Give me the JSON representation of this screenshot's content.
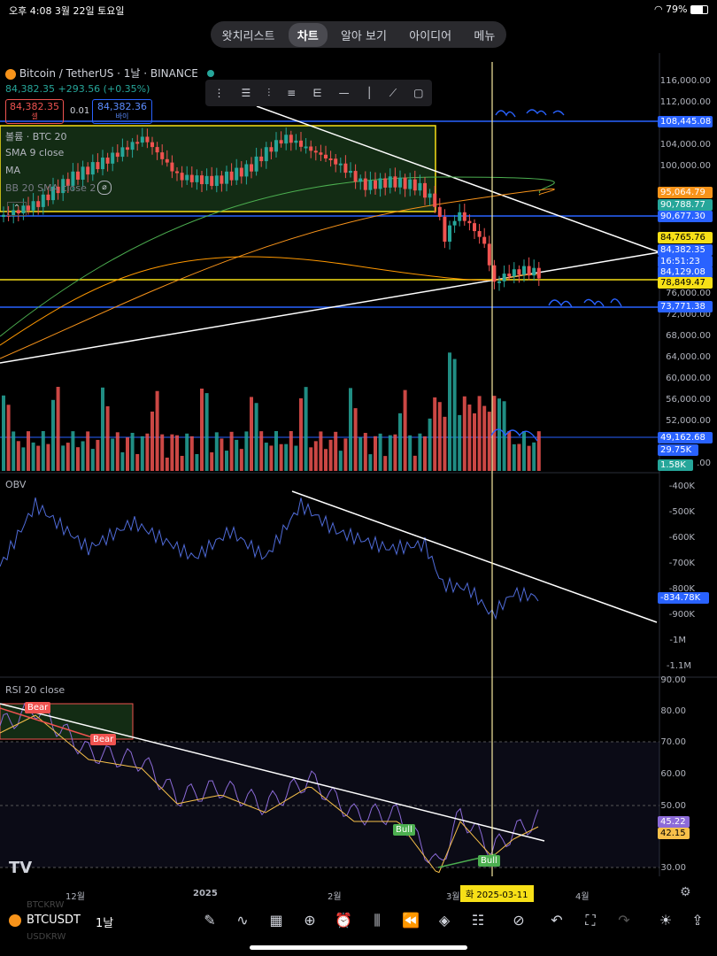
{
  "status": {
    "time_date": "오후 4:08   3월 22일 토요일",
    "battery": "79%"
  },
  "tabs": [
    {
      "label": "왓치리스트",
      "active": false
    },
    {
      "label": "차트",
      "active": true
    },
    {
      "label": "알아 보기",
      "active": false
    },
    {
      "label": "아이디어",
      "active": false
    },
    {
      "label": "메뉴",
      "active": false
    }
  ],
  "legend": {
    "symbol": "Bitcoin / TetherUS · 1날 · BINANCE",
    "price_change": "84,382.35 +293.56 (+0.35%)",
    "sell_price": "84,382.35",
    "sell_label": "셀",
    "spread": "0.01",
    "buy_price": "84,382.36",
    "buy_label": "바이",
    "indicators": [
      "볼륨 · BTC 20",
      "SMA 9 close",
      "MA",
      "BB 20 SMA close 2"
    ]
  },
  "price_axis": [
    "116,000.00",
    "112,000.00",
    "104,000.00",
    "100,000.00",
    "76,000.00",
    "72,000.00",
    "68,000.00",
    "64,000.00",
    "60,000.00",
    "56,000.00",
    "52,000.00",
    ".00"
  ],
  "price_tags": [
    {
      "text": "108,445.08",
      "color": "#2962ff"
    },
    {
      "text": "95,064.79",
      "color": "#f7931a"
    },
    {
      "text": "90,788.77",
      "color": "#26a69a"
    },
    {
      "text": "90,677.30",
      "color": "#2962ff"
    },
    {
      "text": "84,765.76",
      "color": "#f7e017"
    },
    {
      "text": "84,382.35",
      "color": "#2962ff"
    },
    {
      "text": "16:51:23",
      "color": "#2962ff"
    },
    {
      "text": "84,129.08",
      "color": "#2962ff"
    },
    {
      "text": "78,849.47",
      "color": "#f7e017"
    },
    {
      "text": "73,771.38",
      "color": "#2962ff"
    },
    {
      "text": "49,162.68",
      "color": "#2962ff"
    },
    {
      "text": "29.75K",
      "color": "#2962ff"
    },
    {
      "text": "1.58K",
      "color": "#26a69a"
    }
  ],
  "obv": {
    "label": "OBV",
    "axis": [
      "-400K",
      "-500K",
      "-600K",
      "-700K",
      "-800K",
      "-900K",
      "-1M",
      "-1.1M"
    ],
    "current": "-834.78K"
  },
  "rsi": {
    "label": "RSI 20 close",
    "axis": [
      "90.00",
      "80.00",
      "70.00",
      "60.00",
      "50.00",
      "30.00"
    ],
    "tag1": "45.22",
    "tag2": "42.15",
    "signals": [
      "Bear",
      "Bear",
      "Bull",
      "Bull"
    ]
  },
  "x_axis": [
    "12월",
    "2025",
    "2월",
    "3월",
    "4월"
  ],
  "crosshair_date": "화 2025-03-11",
  "annotations": [
    "저기는",
    "지지",
    "지지"
  ],
  "bottom": {
    "symbol": "BTCUSDT",
    "interval": "1날",
    "ghost1": "BTCKRW",
    "ghost2": "USDKRW"
  },
  "colors": {
    "up": "#26a69a",
    "down": "#ef5350",
    "accent": "#2962ff",
    "yellow": "#f7e017"
  }
}
